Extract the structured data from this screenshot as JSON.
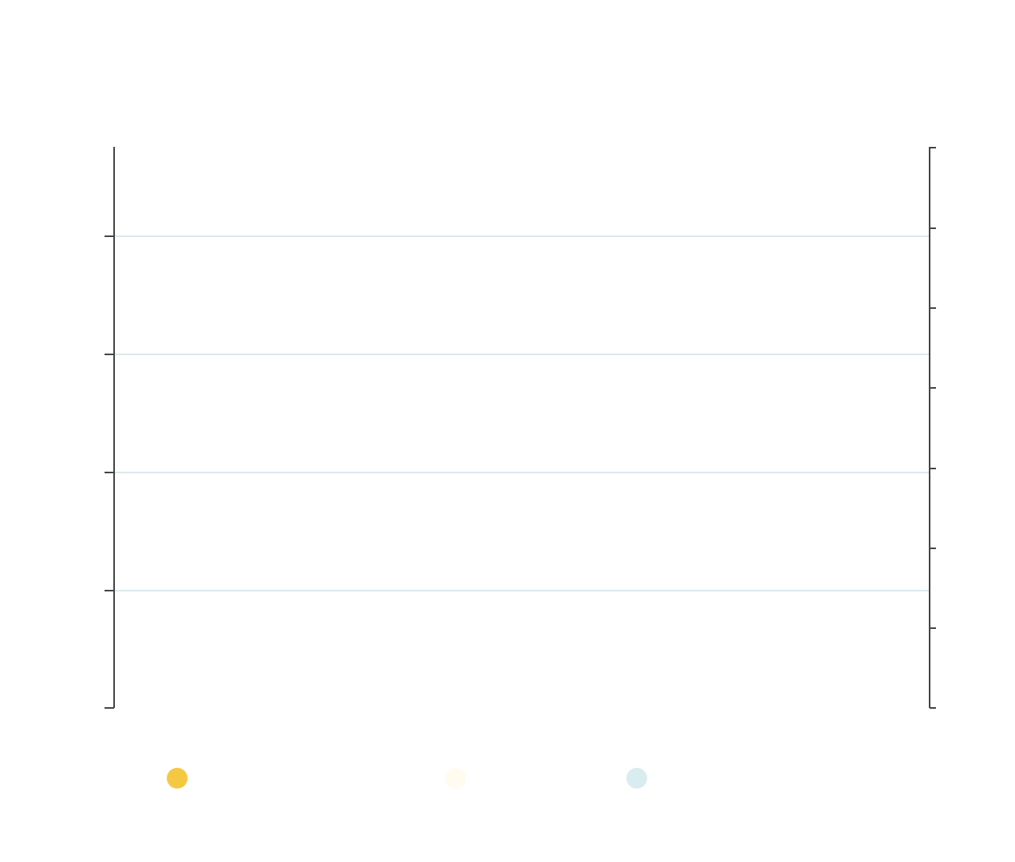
{
  "chart_data": {
    "type": "line",
    "title": "",
    "xlabel": "",
    "ylabel": "",
    "y2label": "",
    "grid": true,
    "legend_position": "bottom",
    "series": [
      {
        "name": "",
        "color": "#f5c842",
        "values": []
      },
      {
        "name": "",
        "color": "#fffbef",
        "values": []
      },
      {
        "name": "",
        "color": "#d9ecf0",
        "values": []
      }
    ]
  },
  "colors": {
    "axis": "#444444",
    "grid": "#dbe9ec",
    "background": "#ffffff"
  }
}
